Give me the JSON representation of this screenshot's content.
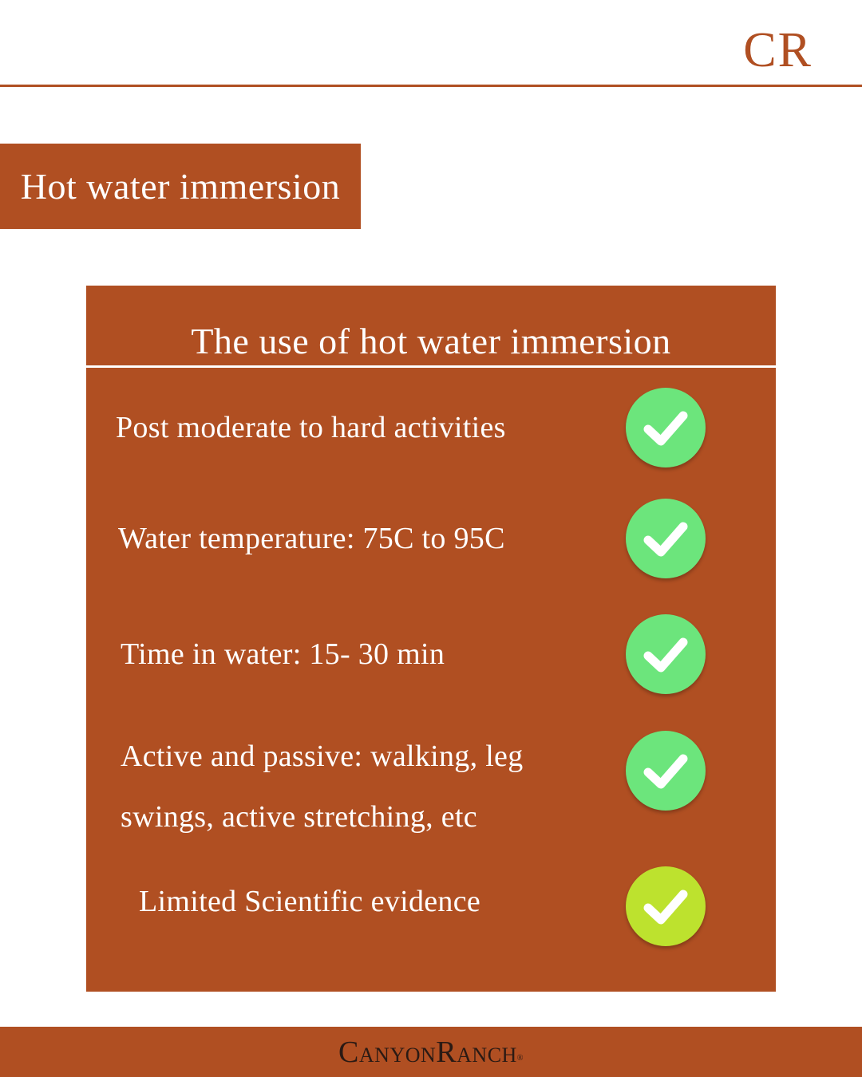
{
  "brand": {
    "logo_text": "CR",
    "accent_color": "#b04f22",
    "footer_logo": {
      "first_initial": "C",
      "first_rest": "ANYON",
      "second_initial": "R",
      "second_rest": "ANCH",
      "registered": "®"
    }
  },
  "title": "Hot water immersion",
  "panel": {
    "heading": "The use of hot water immersion",
    "items": [
      {
        "text": "Post moderate to hard activities",
        "icon": "check-icon",
        "icon_color": "#6ce57c"
      },
      {
        "text": "Water temperature: 75C to 95C",
        "icon": "check-icon",
        "icon_color": "#6ce57c"
      },
      {
        "text": "Time in water: 15- 30 min",
        "icon": "check-icon",
        "icon_color": "#6ce57c"
      },
      {
        "text": "Active and passive: walking, leg swings, active stretching, etc",
        "icon": "check-icon",
        "icon_color": "#6ce57c"
      },
      {
        "text": "Limited Scientific evidence",
        "icon": "check-icon",
        "icon_color": "#bde22e"
      }
    ]
  }
}
